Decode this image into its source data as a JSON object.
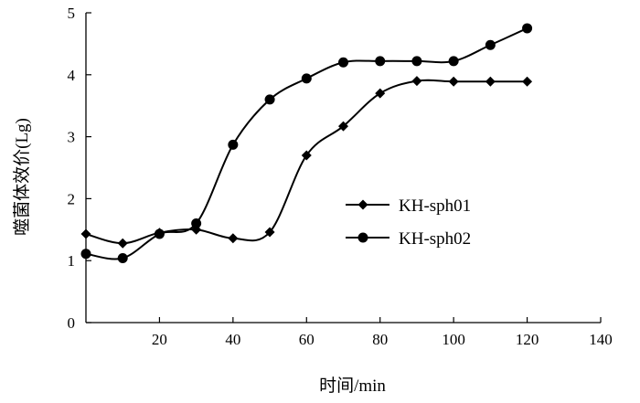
{
  "chart_data": {
    "type": "line",
    "title": "",
    "xlabel": "时间/min",
    "ylabel": "噬菌体效价(Lg)",
    "xlim": [
      0,
      140
    ],
    "ylim": [
      0,
      5
    ],
    "x_ticks": [
      20,
      40,
      60,
      80,
      100,
      120,
      140
    ],
    "y_ticks": [
      0,
      1,
      2,
      3,
      4,
      5
    ],
    "grid": false,
    "legend": "right-center",
    "series": [
      {
        "name": "KH-sph01",
        "marker": "diamond",
        "color": "#000000",
        "x": [
          0,
          10,
          20,
          30,
          40,
          50,
          60,
          70,
          80,
          90,
          100,
          110,
          120
        ],
        "values": [
          1.43,
          1.28,
          1.45,
          1.5,
          1.36,
          1.46,
          2.7,
          3.17,
          3.7,
          3.9,
          3.89,
          3.89,
          3.89
        ]
      },
      {
        "name": "KH-sph02",
        "marker": "circle",
        "color": "#000000",
        "x": [
          0,
          10,
          20,
          30,
          40,
          50,
          60,
          70,
          80,
          90,
          100,
          110,
          120
        ],
        "values": [
          1.11,
          1.04,
          1.43,
          1.6,
          2.87,
          3.6,
          3.94,
          4.2,
          4.22,
          4.22,
          4.22,
          4.48,
          4.75
        ]
      }
    ]
  }
}
